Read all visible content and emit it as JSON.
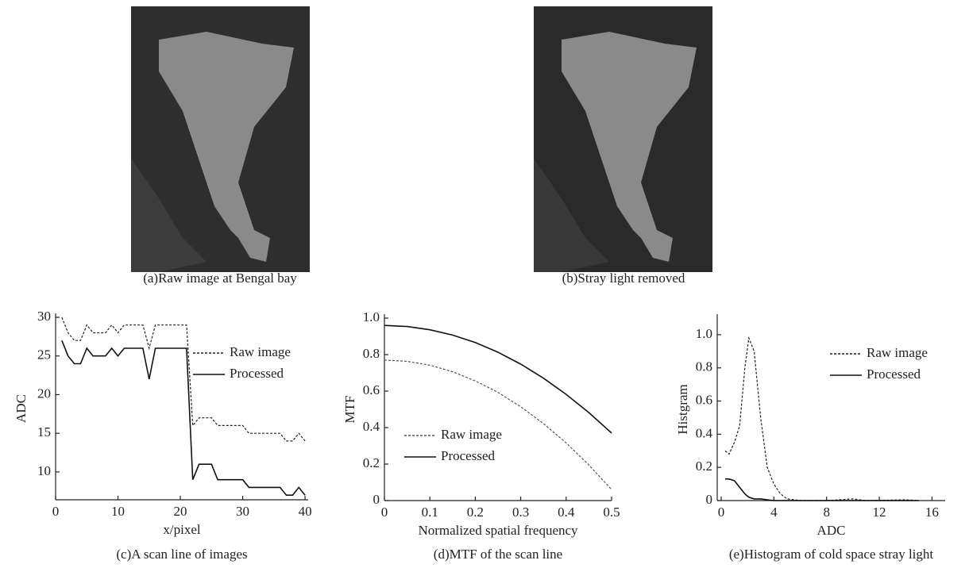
{
  "images": [
    {
      "caption": "(a)Raw image at Bengal bay"
    },
    {
      "caption": "(b)Stray light removed"
    }
  ],
  "chart_data": [
    {
      "type": "line",
      "caption": "(c)A scan line of images",
      "xlabel": "x/pixel",
      "ylabel": "ADC",
      "x": [
        1,
        2,
        3,
        4,
        5,
        6,
        7,
        8,
        9,
        10,
        11,
        12,
        13,
        14,
        15,
        16,
        17,
        18,
        19,
        20,
        21,
        22,
        23,
        24,
        25,
        26,
        27,
        28,
        29,
        30,
        31,
        32,
        33,
        34,
        35,
        36,
        37,
        38,
        39,
        40
      ],
      "series": [
        {
          "name": "Raw image",
          "color": "#222222",
          "line_style": "dotted",
          "values": [
            30,
            28,
            27,
            27,
            29,
            28,
            28,
            28,
            29,
            28,
            29,
            29,
            29,
            29,
            26,
            29,
            29,
            29,
            29,
            29,
            29,
            16,
            17,
            17,
            17,
            16,
            16,
            16,
            16,
            16,
            15,
            15,
            15,
            15,
            15,
            15,
            14,
            14,
            15,
            14
          ]
        },
        {
          "name": "Processed",
          "color": "#111111",
          "line_style": "solid",
          "values": [
            27,
            25,
            24,
            24,
            26,
            25,
            25,
            25,
            26,
            25,
            26,
            26,
            26,
            26,
            22,
            26,
            26,
            26,
            26,
            26,
            26,
            9,
            11,
            11,
            11,
            9,
            9,
            9,
            9,
            9,
            8,
            8,
            8,
            8,
            8,
            8,
            7,
            7,
            8,
            7
          ]
        }
      ],
      "xlim": [
        0,
        40.5
      ],
      "xticks": [
        0,
        10,
        20,
        30,
        40
      ],
      "ylim": [
        6.4,
        30
      ],
      "yticks": [
        10,
        15,
        20,
        25,
        30
      ],
      "legend": "upper right"
    },
    {
      "type": "line",
      "caption": "(d)MTF of the scan line",
      "xlabel": "Normalized spatial frequency",
      "ylabel": "MTF",
      "x": [
        0,
        0.05,
        0.1,
        0.15,
        0.2,
        0.25,
        0.3,
        0.35,
        0.4,
        0.45,
        0.5
      ],
      "series": [
        {
          "name": "Raw image",
          "color": "#555555",
          "line_style": "dotted",
          "values": [
            0.77,
            0.763,
            0.742,
            0.706,
            0.656,
            0.593,
            0.514,
            0.422,
            0.316,
            0.195,
            0.06
          ]
        },
        {
          "name": "Processed",
          "color": "#111111",
          "line_style": "solid",
          "values": [
            0.96,
            0.954,
            0.936,
            0.907,
            0.866,
            0.813,
            0.748,
            0.671,
            0.582,
            0.482,
            0.37
          ]
        }
      ],
      "xlim": [
        0,
        0.5
      ],
      "xticks": [
        0,
        0.1,
        0.2,
        0.3,
        0.4,
        0.5
      ],
      "ylim": [
        0,
        1
      ],
      "yticks": [
        0,
        0.2,
        0.4,
        0.6,
        0.8,
        {
          "value": 1,
          "label": "1.0"
        }
      ],
      "legend": "lower left"
    },
    {
      "type": "line",
      "caption": "(e)Histogram of cold space stray light",
      "xlabel": "ADC",
      "ylabel": "Histgram",
      "x": [
        0.3,
        0.6,
        1,
        1.4,
        1.8,
        2.1,
        2.5,
        3,
        3.5,
        4,
        4.5,
        5,
        6,
        8,
        10,
        10.5,
        11,
        14,
        15
      ],
      "series": [
        {
          "name": "Raw image",
          "color": "#222222",
          "line_style": "dotted",
          "values": [
            0.3,
            0.28,
            0.35,
            0.45,
            0.8,
            0.98,
            0.9,
            0.5,
            0.2,
            0.1,
            0.04,
            0.01,
            0,
            0,
            0.01,
            0.005,
            0,
            0.005,
            0
          ]
        },
        {
          "name": "Processed",
          "color": "#111111",
          "line_style": "solid",
          "values": [
            0.13,
            0.13,
            0.12,
            0.08,
            0.04,
            0.02,
            0.01,
            0.01,
            0.005,
            0,
            0,
            0,
            0,
            0,
            0,
            0,
            0,
            0,
            0
          ]
        }
      ],
      "xlim": [
        -0.3,
        17
      ],
      "xticks": [
        0,
        4,
        8,
        12,
        16
      ],
      "ylim": [
        0,
        1.1
      ],
      "yticks": [
        0,
        0.2,
        0.4,
        0.6,
        0.8,
        {
          "value": 1,
          "label": "1.0"
        }
      ],
      "legend": "upper right"
    }
  ]
}
